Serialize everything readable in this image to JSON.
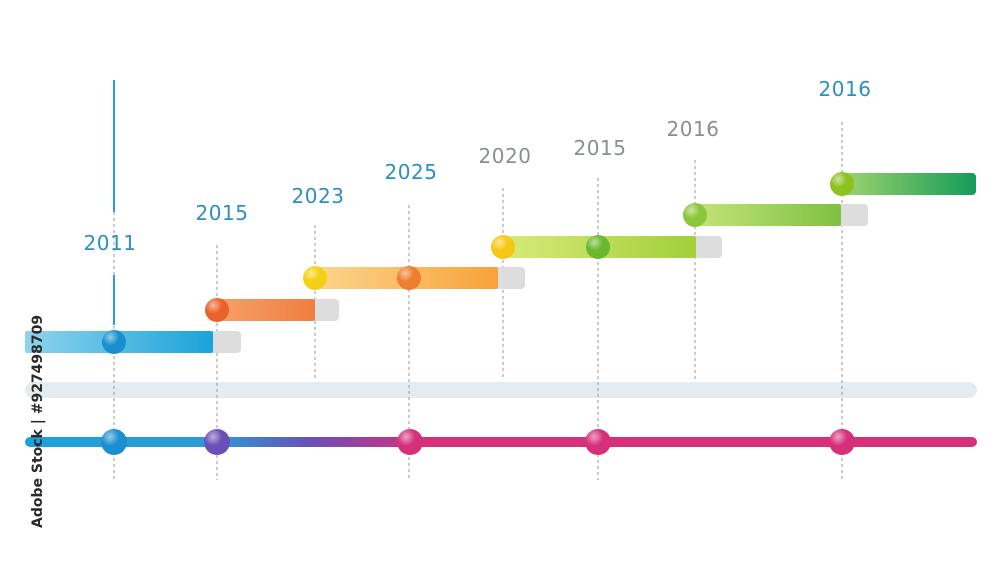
{
  "timeline": {
    "colors": {
      "cyan": "#1aa3d9",
      "orange": "#ef7f3e",
      "amber": "#f9ad3e",
      "lime": "#a6d13b",
      "green": "#7fc241",
      "emerald": "#1e9e5a",
      "purple": "#6a4fb8",
      "magenta": "#d6307a",
      "track": "#e4ebf1",
      "guide": "#9a9a9a",
      "cap": "#dddddd"
    },
    "labels": [
      {
        "text": "2011",
        "color": "#2f8fc0"
      },
      {
        "text": "2015",
        "color": "#2f8fc0"
      },
      {
        "text": "2023",
        "color": "#2f8fc0"
      },
      {
        "text": "2025",
        "color": "#2f8fc0"
      },
      {
        "text": "2020",
        "color": "#8a8f95"
      },
      {
        "text": "2015",
        "color": "#8a8f95"
      },
      {
        "text": "2016",
        "color": "#8a8f95"
      },
      {
        "text": "2016",
        "color": "#2f8fc0"
      }
    ],
    "bars": [
      {
        "color_from": "#8fd3ee",
        "color_to": "#1aa3d9",
        "dot": "#1a8fd0"
      },
      {
        "color_from": "#f6a06a",
        "color_to": "#ef7f3e",
        "dot": "#e8632b"
      },
      {
        "color_from": "#fcd58c",
        "color_to": "#f8a23a",
        "dot": "#f5cf12",
        "dot2": "#ef7e2e"
      },
      {
        "color_from": "#d8ea78",
        "color_to": "#a2cf3a",
        "dot": "#f5c816",
        "dot2": "#6bb82e"
      },
      {
        "color_from": "#c3e37a",
        "color_to": "#7dc242",
        "dot": "#8cc63a"
      },
      {
        "color_from": "#9fd36e",
        "color_to": "#139c5a",
        "dot": "#8dc21f"
      }
    ],
    "bottom_dots": [
      "#1a8fd0",
      "#6a4fb8",
      "#d6307a",
      "#d6307a",
      "#d6307a"
    ]
  },
  "watermark": {
    "side_text": "Adobe Stock | #927498709"
  }
}
